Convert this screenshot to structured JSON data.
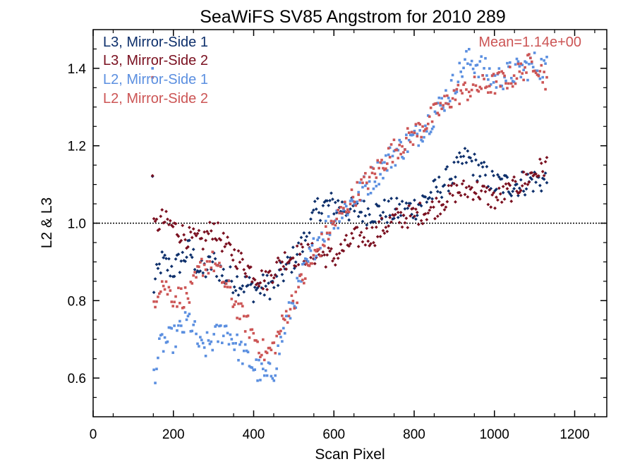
{
  "chart_data": {
    "type": "scatter",
    "title": "SeaWiFS SV85 Angstrom for 2010 289",
    "xlabel": "Scan Pixel",
    "ylabel": "L2 & L3",
    "xlim": [
      0,
      1280
    ],
    "ylim": [
      0.5,
      1.5
    ],
    "x_ticks": [
      0,
      200,
      400,
      600,
      800,
      1000,
      1200
    ],
    "x_tick_labels": [
      "0",
      "200",
      "400",
      "600",
      "800",
      "1000",
      "1200"
    ],
    "y_ticks": [
      0.6,
      0.8,
      1.0,
      1.2,
      1.4
    ],
    "y_tick_labels": [
      "0.6",
      "0.8",
      "1.0",
      "1.2",
      "1.4"
    ],
    "reference_line": {
      "y": 1.0,
      "style": "dotted"
    },
    "annotation": {
      "text": "Mean=1.14e+00",
      "color": "#cc5555"
    },
    "legend_position": "top-left",
    "series": [
      {
        "name": "L3, Mirror-Side 1",
        "color": "#0d2f6b",
        "marker": "diamond",
        "trend": [
          [
            150,
            0.83
          ],
          [
            170,
            0.9
          ],
          [
            200,
            0.88
          ],
          [
            240,
            0.93
          ],
          [
            270,
            0.87
          ],
          [
            300,
            0.9
          ],
          [
            330,
            0.86
          ],
          [
            360,
            0.85
          ],
          [
            400,
            0.83
          ],
          [
            450,
            0.84
          ],
          [
            480,
            0.88
          ],
          [
            520,
            0.94
          ],
          [
            560,
            1.04
          ],
          [
            600,
            1.05
          ],
          [
            650,
            1.03
          ],
          [
            700,
            1.03
          ],
          [
            750,
            1.03
          ],
          [
            800,
            1.04
          ],
          [
            850,
            1.08
          ],
          [
            900,
            1.13
          ],
          [
            930,
            1.17
          ],
          [
            960,
            1.14
          ],
          [
            1000,
            1.1
          ],
          [
            1050,
            1.1
          ],
          [
            1100,
            1.11
          ],
          [
            1130,
            1.11
          ]
        ],
        "spread": 0.035
      },
      {
        "name": "L3, Mirror-Side 2",
        "color": "#7a1020",
        "marker": "diamond",
        "trend": [
          [
            150,
            0.98
          ],
          [
            170,
            1.01
          ],
          [
            200,
            0.99
          ],
          [
            240,
            0.96
          ],
          [
            270,
            0.95
          ],
          [
            300,
            0.99
          ],
          [
            330,
            0.94
          ],
          [
            360,
            0.91
          ],
          [
            400,
            0.87
          ],
          [
            430,
            0.85
          ],
          [
            450,
            0.88
          ],
          [
            480,
            0.91
          ],
          [
            520,
            0.92
          ],
          [
            560,
            0.92
          ],
          [
            600,
            0.91
          ],
          [
            650,
            0.96
          ],
          [
            700,
            0.97
          ],
          [
            750,
            1.01
          ],
          [
            800,
            1.02
          ],
          [
            850,
            1.04
          ],
          [
            900,
            1.08
          ],
          [
            950,
            1.09
          ],
          [
            1000,
            1.06
          ],
          [
            1050,
            1.09
          ],
          [
            1100,
            1.13
          ],
          [
            1130,
            1.15
          ]
        ],
        "spread": 0.03
      },
      {
        "name": "L2, Mirror-Side 1",
        "color": "#5b8fe0",
        "marker": "square",
        "trend": [
          [
            150,
            0.6
          ],
          [
            170,
            0.69
          ],
          [
            200,
            0.7
          ],
          [
            240,
            0.75
          ],
          [
            270,
            0.67
          ],
          [
            300,
            0.7
          ],
          [
            330,
            0.73
          ],
          [
            360,
            0.68
          ],
          [
            400,
            0.63
          ],
          [
            430,
            0.6
          ],
          [
            450,
            0.62
          ],
          [
            480,
            0.74
          ],
          [
            520,
            0.86
          ],
          [
            560,
            0.96
          ],
          [
            600,
            1.01
          ],
          [
            650,
            1.06
          ],
          [
            700,
            1.12
          ],
          [
            750,
            1.18
          ],
          [
            800,
            1.22
          ],
          [
            850,
            1.28
          ],
          [
            900,
            1.36
          ],
          [
            930,
            1.42
          ],
          [
            960,
            1.41
          ],
          [
            1000,
            1.37
          ],
          [
            1050,
            1.39
          ],
          [
            1100,
            1.41
          ],
          [
            1130,
            1.4
          ]
        ],
        "spread": 0.035
      },
      {
        "name": "L2, Mirror-Side 2",
        "color": "#cc5555",
        "marker": "square",
        "trend": [
          [
            150,
            0.8
          ],
          [
            170,
            0.85
          ],
          [
            200,
            0.81
          ],
          [
            240,
            0.81
          ],
          [
            270,
            0.89
          ],
          [
            300,
            0.9
          ],
          [
            330,
            0.84
          ],
          [
            360,
            0.78
          ],
          [
            400,
            0.71
          ],
          [
            430,
            0.66
          ],
          [
            450,
            0.68
          ],
          [
            480,
            0.76
          ],
          [
            520,
            0.85
          ],
          [
            560,
            0.93
          ],
          [
            600,
            1.0
          ],
          [
            650,
            1.07
          ],
          [
            700,
            1.13
          ],
          [
            750,
            1.19
          ],
          [
            800,
            1.23
          ],
          [
            850,
            1.28
          ],
          [
            900,
            1.33
          ],
          [
            950,
            1.35
          ],
          [
            1000,
            1.36
          ],
          [
            1050,
            1.38
          ],
          [
            1100,
            1.42
          ],
          [
            1130,
            1.37
          ]
        ],
        "spread": 0.03
      }
    ]
  }
}
